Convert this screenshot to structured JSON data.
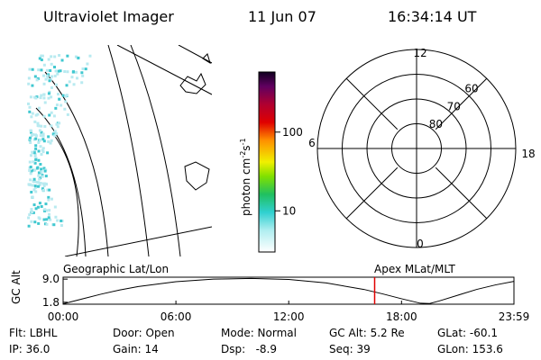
{
  "header": {
    "title": "Ultraviolet Imager",
    "date": "11 Jun 07",
    "time": "16:34:14 UT"
  },
  "map": {
    "label": "Geographic Lat/Lon"
  },
  "colorbar": {
    "label": "photon cm",
    "exp1": "-2",
    "unit2": "s",
    "exp2": "-1",
    "clim": [
      3,
      580
    ],
    "ticks": [
      10,
      100
    ],
    "log": true
  },
  "polar": {
    "label": "Apex MLat/MLT",
    "rlim": [
      90,
      50
    ],
    "lat_ticks": [
      80,
      70,
      60
    ],
    "mlt_ticks": [
      0,
      6,
      12,
      18
    ]
  },
  "altitude": {
    "ylabel": "GC Alt",
    "ylim": [
      1.2,
      9.6
    ],
    "yticks": [
      {
        "value": 9.0,
        "label": "9.0"
      },
      {
        "value": 1.8,
        "label": "1.8"
      }
    ],
    "xlim": [
      0,
      23.98
    ],
    "xticks": [
      {
        "value": 0,
        "label": "00:00"
      },
      {
        "value": 6,
        "label": "06:00"
      },
      {
        "value": 12,
        "label": "12:00"
      },
      {
        "value": 18,
        "label": "18:00"
      },
      {
        "value": 23.98,
        "label": "23:59"
      }
    ],
    "x": [
      0,
      1,
      2,
      3,
      4,
      6,
      8,
      10,
      12,
      14,
      16,
      17,
      18,
      19,
      19.5,
      20,
      21,
      22,
      23,
      23.98
    ],
    "values": [
      1.3,
      2.8,
      4.3,
      5.6,
      6.7,
      8.2,
      9.0,
      9.2,
      8.9,
      7.8,
      5.8,
      4.4,
      2.9,
      1.5,
      1.4,
      2.2,
      4.0,
      5.8,
      7.2,
      8.3
    ],
    "current_hours": 16.57,
    "current_color": "#e00000"
  },
  "status": {
    "rows": [
      [
        "Flt: LBHL",
        "Door: Open",
        "Mode: Normal",
        "GC Alt: 5.2 Re",
        "GLat: -60.1"
      ],
      [
        "IP: 36.0",
        "Gain: 14",
        "Dsp:   -8.9",
        "Seq: 39",
        "GLon: 153.6"
      ]
    ]
  }
}
